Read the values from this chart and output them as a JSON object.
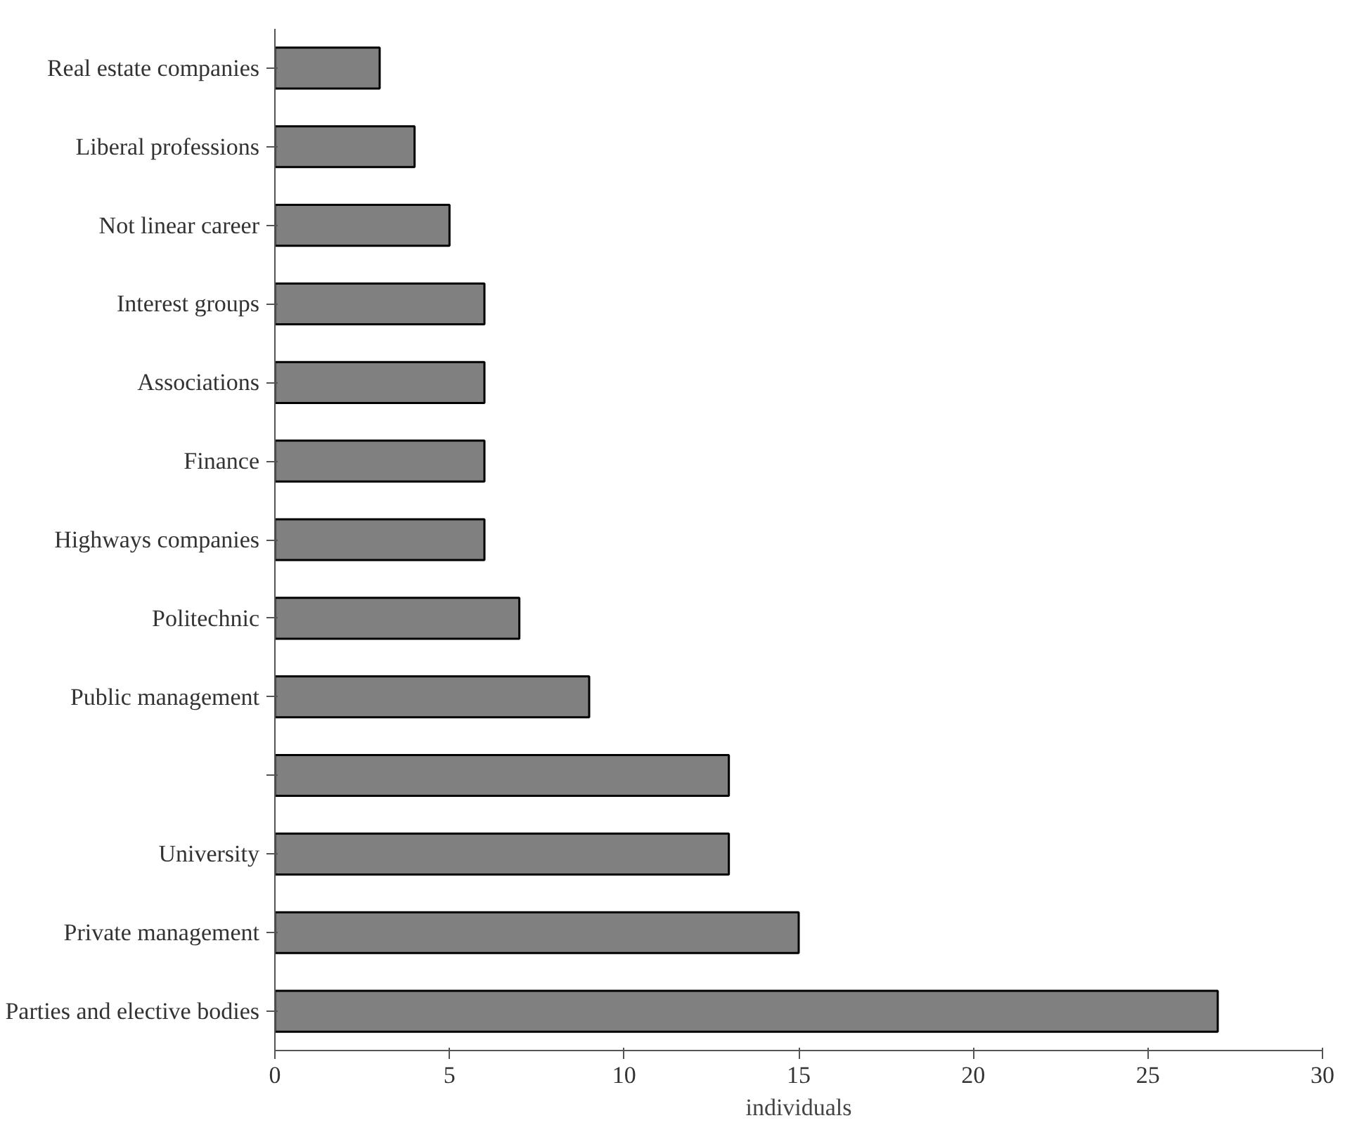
{
  "chart_data": {
    "type": "bar",
    "orientation": "horizontal",
    "xlabel": "individuals",
    "categories": [
      "Real estate companies",
      "Liberal professions",
      "Not linear career",
      "Interest groups",
      "Associations",
      "Finance",
      "Highways companies",
      "Politechnic",
      "Public management",
      null,
      "University",
      "Private management",
      "Parties and elective bodies"
    ],
    "values": [
      3,
      4,
      5,
      6,
      6,
      6,
      6,
      7,
      9,
      13,
      13,
      15,
      27
    ],
    "color": "#808080",
    "xlim": [
      0,
      30
    ],
    "xticks": [
      0,
      5,
      10,
      15,
      20,
      25,
      30
    ],
    "grid": false
  }
}
